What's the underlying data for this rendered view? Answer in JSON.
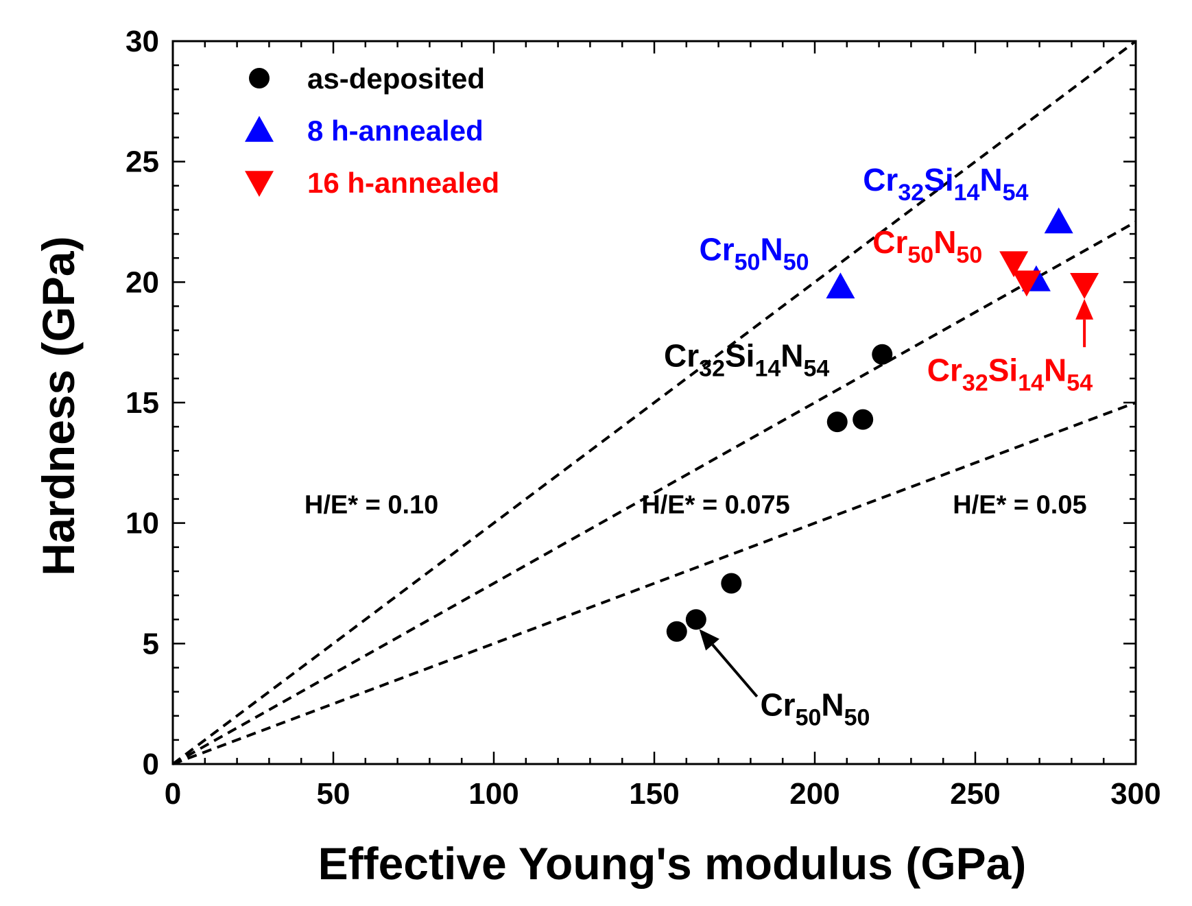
{
  "chart_data": {
    "type": "scatter",
    "title": "",
    "xlabel": "Effective Young's modulus (GPa)",
    "ylabel": "Hardness (GPa)",
    "xlim": [
      0,
      300
    ],
    "ylim": [
      0,
      30
    ],
    "xticks": [
      0,
      50,
      100,
      150,
      200,
      250,
      300
    ],
    "yticks": [
      0,
      5,
      10,
      15,
      20,
      25,
      30
    ],
    "grid": false,
    "legend_position": "top-left",
    "colors": {
      "as_deposited": "#000000",
      "h8": "#0000ff",
      "h16": "#ff0000"
    },
    "series": [
      {
        "name": "as-deposited",
        "marker": "circle",
        "color": "#000000",
        "points": [
          {
            "x": 157,
            "y": 5.5
          },
          {
            "x": 163,
            "y": 6.0
          },
          {
            "x": 174,
            "y": 7.5
          },
          {
            "x": 207,
            "y": 14.2
          },
          {
            "x": 215,
            "y": 14.3
          },
          {
            "x": 221,
            "y": 17.0
          }
        ]
      },
      {
        "name": "8 h-annealed",
        "marker": "triangle-up",
        "color": "#0000ff",
        "points": [
          {
            "x": 208,
            "y": 19.8
          },
          {
            "x": 269,
            "y": 20.1
          },
          {
            "x": 276,
            "y": 22.5
          }
        ]
      },
      {
        "name": "16 h-annealed",
        "marker": "triangle-down",
        "color": "#ff0000",
        "points": [
          {
            "x": 262,
            "y": 20.8
          },
          {
            "x": 266,
            "y": 20.0
          },
          {
            "x": 284,
            "y": 19.9
          }
        ]
      }
    ],
    "reference_lines": [
      {
        "label": "H/E* = 0.10",
        "slope": 0.1
      },
      {
        "label": "H/E* = 0.075",
        "slope": 0.075
      },
      {
        "label": "H/E* = 0.05",
        "slope": 0.05
      }
    ],
    "annotations": [
      {
        "id": "blue-cr50n50",
        "color": "#0000ff",
        "parts": [
          [
            "Cr",
            ""
          ],
          [
            "50",
            "sub"
          ],
          [
            "N",
            ""
          ],
          [
            "50",
            "sub"
          ]
        ],
        "x": 164,
        "y": 20.9
      },
      {
        "id": "blue-cr32si14n54",
        "color": "#0000ff",
        "parts": [
          [
            "Cr",
            ""
          ],
          [
            "32",
            "sub"
          ],
          [
            "Si",
            ""
          ],
          [
            "14",
            "sub"
          ],
          [
            "N",
            ""
          ],
          [
            "54",
            "sub"
          ]
        ],
        "x": 215,
        "y": 23.8
      },
      {
        "id": "red-cr50n50",
        "color": "#ff0000",
        "parts": [
          [
            "Cr",
            ""
          ],
          [
            "50",
            "sub"
          ],
          [
            "N",
            ""
          ],
          [
            "50",
            "sub"
          ]
        ],
        "x": 218,
        "y": 21.2
      },
      {
        "id": "red-cr32si14n54",
        "color": "#ff0000",
        "parts": [
          [
            "Cr",
            ""
          ],
          [
            "32",
            "sub"
          ],
          [
            "Si",
            ""
          ],
          [
            "14",
            "sub"
          ],
          [
            "N",
            ""
          ],
          [
            "54",
            "sub"
          ]
        ],
        "x": 235,
        "y": 15.9
      },
      {
        "id": "black-cr32si14n54",
        "color": "#000000",
        "parts": [
          [
            "Cr",
            ""
          ],
          [
            "32",
            "sub"
          ],
          [
            "Si",
            ""
          ],
          [
            "14",
            "sub"
          ],
          [
            "N",
            ""
          ],
          [
            "54",
            "sub"
          ]
        ],
        "x": 153,
        "y": 16.5
      },
      {
        "id": "black-cr50n50",
        "color": "#000000",
        "parts": [
          [
            "Cr",
            ""
          ],
          [
            "50",
            "sub"
          ],
          [
            "N",
            ""
          ],
          [
            "50",
            "sub"
          ]
        ],
        "x": 183,
        "y": 2.0
      }
    ],
    "arrows": [
      {
        "color": "#000000",
        "from": [
          182,
          2.8
        ],
        "to": [
          164,
          5.6
        ]
      },
      {
        "color": "#ff0000",
        "from": [
          284,
          17.3
        ],
        "to": [
          284,
          19.3
        ]
      }
    ]
  }
}
